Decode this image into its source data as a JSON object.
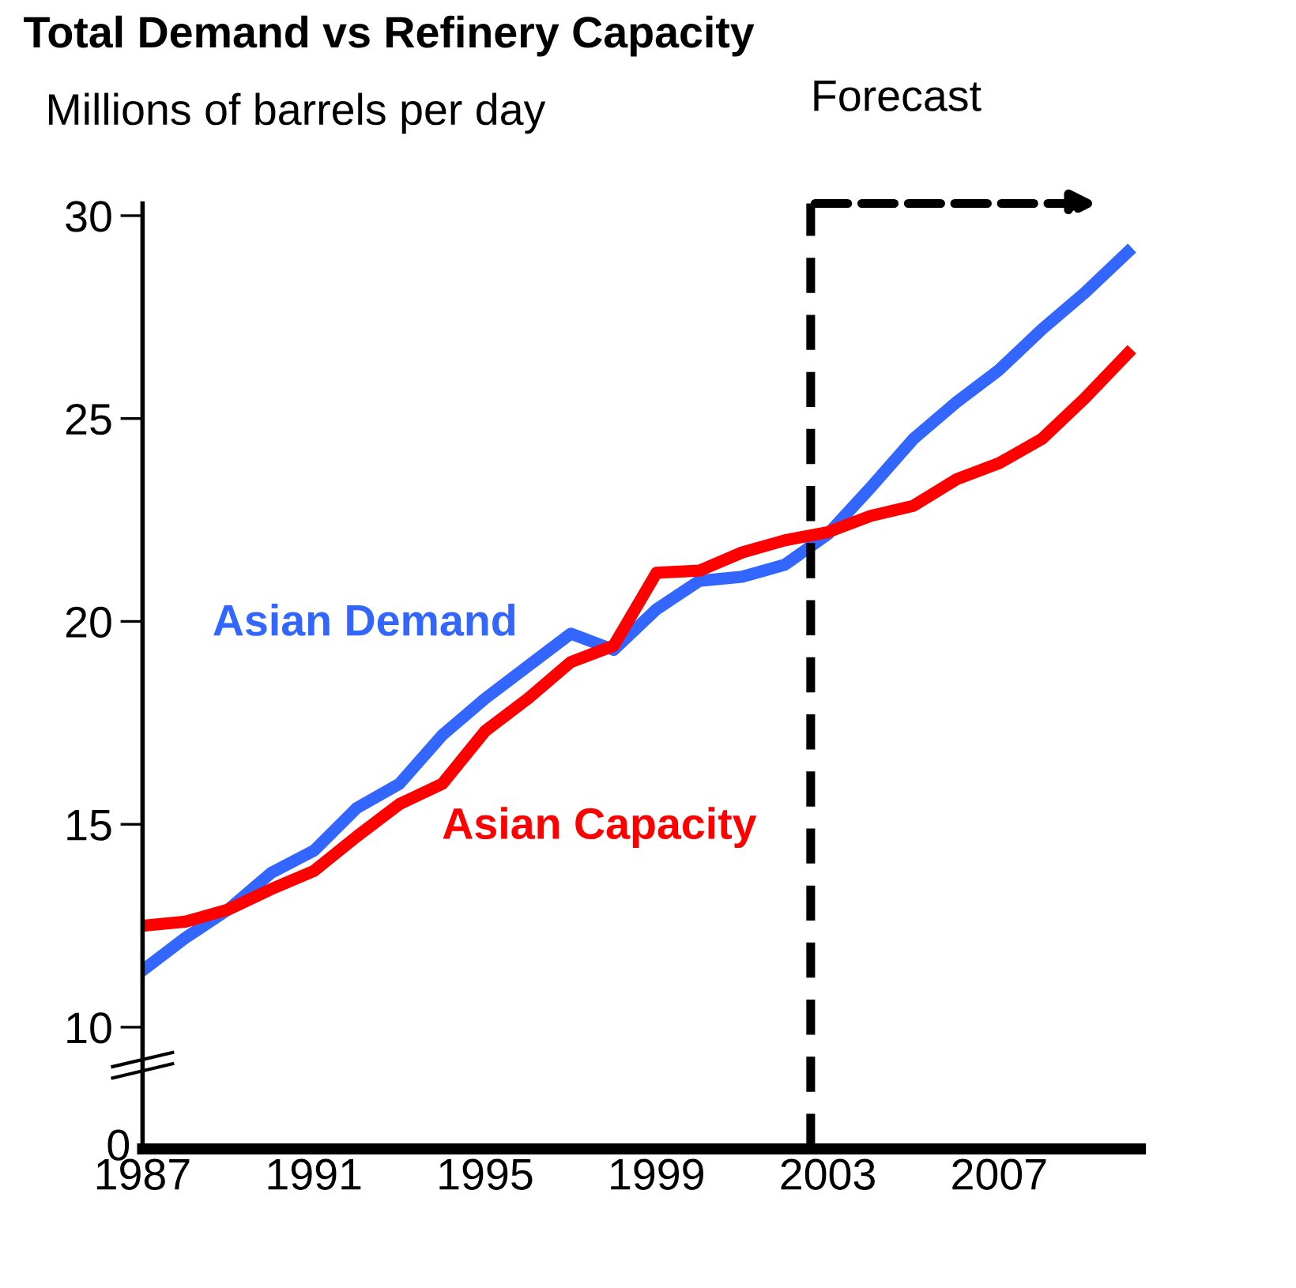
{
  "chart_data": {
    "type": "line",
    "title": "Total Demand vs Refinery Capacity",
    "ylabel": "Millions of barrels per day",
    "x": [
      1987,
      1988,
      1989,
      1990,
      1991,
      1992,
      1993,
      1994,
      1995,
      1996,
      1997,
      1998,
      1999,
      2000,
      2001,
      2002,
      2003,
      2004,
      2005,
      2006,
      2007,
      2008,
      2009,
      2010
    ],
    "series": [
      {
        "name": "Asian Demand",
        "color": "#3366ff",
        "values": [
          11.4,
          12.2,
          12.9,
          13.8,
          14.35,
          15.4,
          16.0,
          17.2,
          18.1,
          18.9,
          19.7,
          19.3,
          20.3,
          21.0,
          21.1,
          21.4,
          22.15,
          23.3,
          24.5,
          25.4,
          26.2,
          27.2,
          28.1,
          29.1
        ]
      },
      {
        "name": "Asian Capacity",
        "color": "#ff0000",
        "values": [
          12.5,
          12.6,
          12.9,
          13.4,
          13.85,
          14.7,
          15.5,
          16.0,
          17.3,
          18.1,
          19.0,
          19.4,
          21.2,
          21.25,
          21.7,
          22.0,
          22.2,
          22.6,
          22.85,
          23.5,
          23.9,
          24.5,
          25.5,
          26.6
        ]
      }
    ],
    "xlim": [
      1987,
      2010.3
    ],
    "xticks": [
      1987,
      1991,
      1995,
      1999,
      2003,
      2007
    ],
    "ylim": [
      7,
      30.3
    ],
    "yticks": [
      10,
      15,
      20,
      25,
      30
    ],
    "annotations": [
      "0"
    ],
    "ref_lines": [
      {
        "axis": "x",
        "value": 2002.6,
        "label": "Forecast",
        "color": "#000000",
        "line_style": "dashed"
      }
    ],
    "grid": false,
    "legend": false,
    "marker": "none",
    "line_style": "solid"
  }
}
